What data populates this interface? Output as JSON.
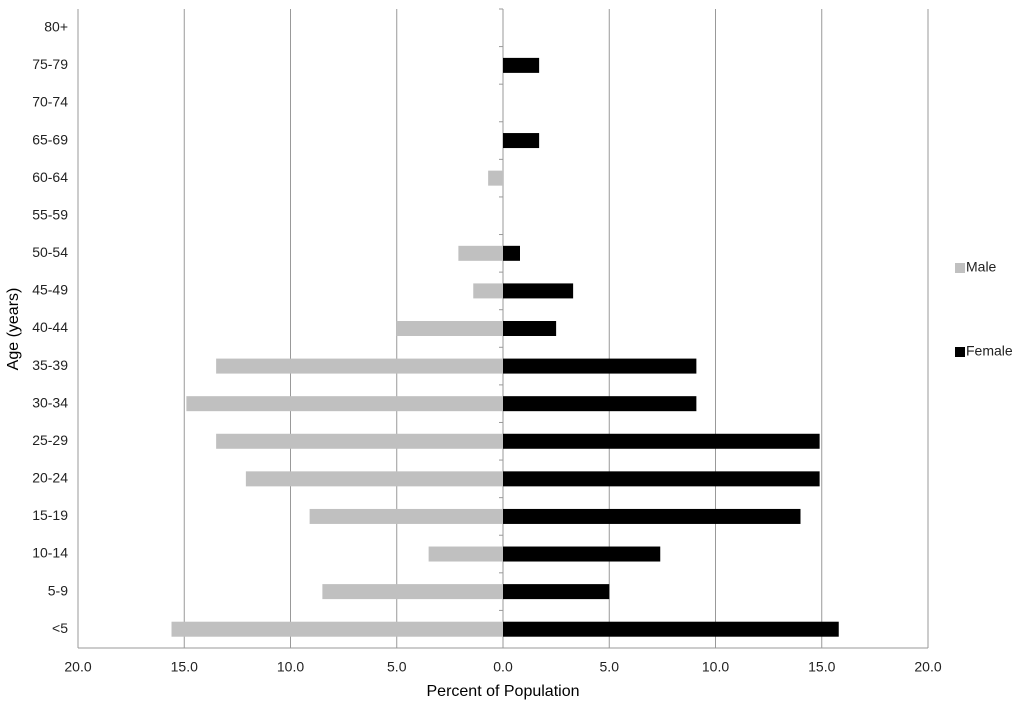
{
  "chart_data": {
    "type": "bar",
    "orientation": "horizontal",
    "x_label": "Percent of Population",
    "y_label": "Age (years)",
    "categories": [
      "<5",
      "5-9",
      "10-14",
      "15-19",
      "20-24",
      "25-29",
      "30-34",
      "35-39",
      "40-44",
      "45-49",
      "50-54",
      "55-59",
      "60-64",
      "65-69",
      "70-74",
      "75-79",
      "80+"
    ],
    "series": [
      {
        "name": "Male",
        "color": "#c0c0c0",
        "values": [
          -15.6,
          -8.5,
          -3.5,
          -9.1,
          -12.1,
          -13.5,
          -14.9,
          -13.5,
          -5.0,
          -1.4,
          -2.1,
          0,
          -0.7,
          0,
          0,
          0,
          0
        ]
      },
      {
        "name": "Female",
        "color": "#000000",
        "values": [
          15.8,
          5.0,
          7.4,
          14.0,
          14.9,
          14.9,
          9.1,
          9.1,
          2.5,
          3.3,
          0.8,
          0,
          0,
          1.7,
          0,
          1.7,
          0
        ]
      }
    ],
    "xlim": [
      -20,
      20
    ],
    "xticks": [
      {
        "value": -20,
        "label": "20.0"
      },
      {
        "value": -15,
        "label": "15.0"
      },
      {
        "value": -10,
        "label": "10.0"
      },
      {
        "value": -5,
        "label": "5.0"
      },
      {
        "value": 0,
        "label": "0.0"
      },
      {
        "value": 5,
        "label": "5.0"
      },
      {
        "value": 10,
        "label": "10.0"
      },
      {
        "value": 15,
        "label": "15.0"
      },
      {
        "value": 20,
        "label": "20.0"
      }
    ],
    "grid": true,
    "legend": "right"
  }
}
